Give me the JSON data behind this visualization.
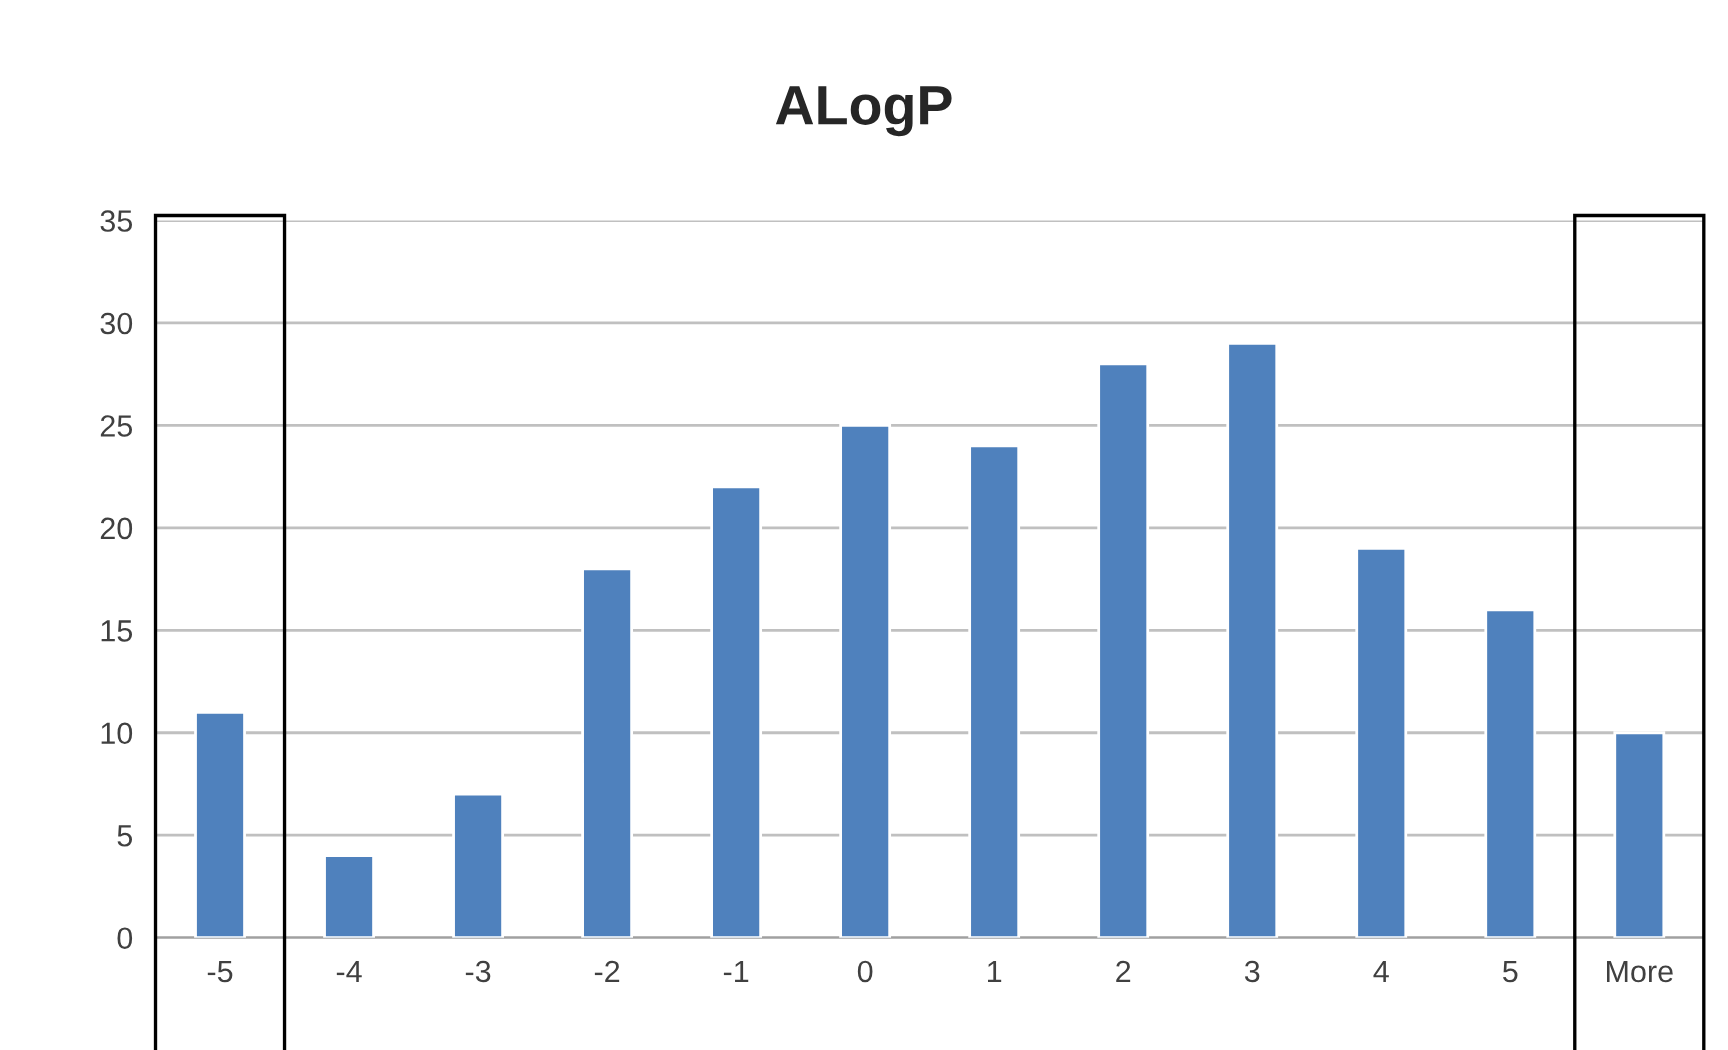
{
  "chart_data": {
    "type": "bar",
    "title": "ALogP",
    "categories": [
      "-5",
      "-4",
      "-3",
      "-2",
      "-1",
      "0",
      "1",
      "2",
      "3",
      "4",
      "5",
      "More"
    ],
    "values": [
      11,
      4,
      7,
      18,
      22,
      25,
      24,
      28,
      29,
      19,
      16,
      10
    ],
    "color": "#4f81bd",
    "ylim": [
      0,
      35
    ],
    "yticks": [
      0,
      5,
      10,
      15,
      20,
      25,
      30,
      35
    ],
    "grid": "y"
  }
}
